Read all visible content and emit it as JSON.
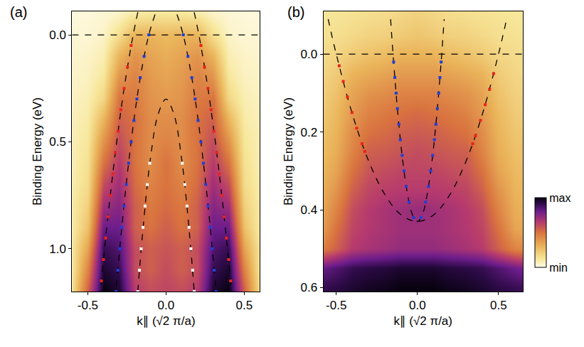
{
  "chart_data": [
    {
      "type": "heatmap",
      "annotations": [
        "(a)"
      ],
      "xlabel": "k∥ (√2 π/a)",
      "ylabel": "Binding Energy (eV)",
      "xlim": [
        -0.6,
        0.6
      ],
      "ylim": [
        1.2,
        -0.11
      ],
      "xticks": [
        -0.5,
        {
          "value": 0,
          "label": "0.0"
        },
        0.5
      ],
      "yticks": [
        {
          "value": 0,
          "label": "0.0"
        },
        0.5,
        {
          "value": 1,
          "label": "1.0"
        }
      ],
      "zlim": [
        0,
        1
      ],
      "heatmap": {
        "x": [
          -0.6,
          -0.5,
          -0.4,
          -0.3,
          -0.2,
          -0.1,
          0,
          0.1,
          0.2,
          0.3,
          0.4,
          0.5,
          0.6
        ],
        "y": [
          -0.1,
          0,
          0.1,
          0.2,
          0.3,
          0.4,
          0.5,
          0.6,
          0.7,
          0.8,
          0.9,
          1.0,
          1.1,
          1.2
        ],
        "z": [
          [
            0.02,
            0.02,
            0.03,
            0.05,
            0.1,
            0.12,
            0.12,
            0.12,
            0.1,
            0.05,
            0.03,
            0.02,
            0.02
          ],
          [
            0.03,
            0.03,
            0.05,
            0.15,
            0.3,
            0.3,
            0.28,
            0.3,
            0.3,
            0.15,
            0.05,
            0.03,
            0.03
          ],
          [
            0.04,
            0.05,
            0.08,
            0.3,
            0.4,
            0.35,
            0.32,
            0.35,
            0.4,
            0.3,
            0.08,
            0.05,
            0.04
          ],
          [
            0.05,
            0.06,
            0.12,
            0.4,
            0.45,
            0.38,
            0.35,
            0.38,
            0.45,
            0.4,
            0.12,
            0.06,
            0.05
          ],
          [
            0.06,
            0.08,
            0.18,
            0.5,
            0.48,
            0.4,
            0.38,
            0.4,
            0.48,
            0.5,
            0.18,
            0.08,
            0.06
          ],
          [
            0.07,
            0.1,
            0.3,
            0.55,
            0.5,
            0.42,
            0.42,
            0.42,
            0.5,
            0.55,
            0.3,
            0.1,
            0.07
          ],
          [
            0.08,
            0.12,
            0.4,
            0.6,
            0.5,
            0.42,
            0.45,
            0.42,
            0.5,
            0.6,
            0.4,
            0.12,
            0.08
          ],
          [
            0.08,
            0.14,
            0.5,
            0.65,
            0.5,
            0.42,
            0.5,
            0.42,
            0.5,
            0.65,
            0.5,
            0.14,
            0.08
          ],
          [
            0.09,
            0.16,
            0.6,
            0.7,
            0.52,
            0.45,
            0.5,
            0.45,
            0.52,
            0.7,
            0.6,
            0.16,
            0.09
          ],
          [
            0.1,
            0.2,
            0.7,
            0.75,
            0.55,
            0.48,
            0.52,
            0.48,
            0.55,
            0.75,
            0.7,
            0.2,
            0.1
          ],
          [
            0.1,
            0.25,
            0.8,
            0.8,
            0.55,
            0.5,
            0.55,
            0.5,
            0.55,
            0.8,
            0.8,
            0.25,
            0.1
          ],
          [
            0.12,
            0.35,
            0.9,
            0.85,
            0.6,
            0.55,
            0.58,
            0.55,
            0.6,
            0.85,
            0.9,
            0.35,
            0.12
          ],
          [
            0.12,
            0.45,
            0.95,
            0.9,
            0.6,
            0.55,
            0.6,
            0.55,
            0.6,
            0.9,
            0.95,
            0.45,
            0.12
          ],
          [
            0.15,
            0.55,
            1.0,
            0.95,
            0.65,
            0.6,
            0.62,
            0.6,
            0.65,
            0.95,
            1.0,
            0.55,
            0.15
          ]
        ]
      },
      "series": [
        {
          "type": "line",
          "line_style": "dashed",
          "color": "#000000",
          "x": [
            -0.6,
            0.6
          ],
          "values": [
            0,
            0
          ]
        },
        {
          "type": "line",
          "line_style": "dashed",
          "color": "#000000",
          "x": [
            -0.18,
            -0.21,
            -0.26,
            -0.3,
            -0.34,
            -0.38,
            -0.42
          ],
          "values": [
            -0.106,
            0,
            0.213,
            0.416,
            0.648,
            0.91,
            1.2
          ]
        },
        {
          "type": "line",
          "line_style": "dashed",
          "color": "#000000",
          "x": [
            0.18,
            0.21,
            0.26,
            0.3,
            0.34,
            0.38,
            0.42
          ],
          "values": [
            -0.106,
            0,
            0.213,
            0.416,
            0.648,
            0.91,
            1.2
          ]
        },
        {
          "type": "line",
          "line_style": "dashed",
          "color": "#000000",
          "x": [
            -0.07,
            -0.11,
            -0.16,
            -0.2,
            -0.24,
            -0.28,
            -0.32
          ],
          "values": [
            -0.096,
            0,
            0.18,
            0.37,
            0.605,
            0.88,
            1.2
          ]
        },
        {
          "type": "line",
          "line_style": "dashed",
          "color": "#000000",
          "x": [
            0.07,
            0.11,
            0.16,
            0.2,
            0.24,
            0.28,
            0.32
          ],
          "values": [
            -0.096,
            0,
            0.18,
            0.37,
            0.605,
            0.88,
            1.2
          ]
        },
        {
          "type": "line",
          "line_style": "dashed",
          "color": "#000000",
          "x": [
            -0.18,
            -0.15,
            -0.1,
            -0.05,
            0,
            0.05,
            0.1,
            0.15,
            0.18
          ],
          "values": [
            1.2,
            0.93,
            0.58,
            0.37,
            0.3,
            0.37,
            0.58,
            0.93,
            1.2
          ]
        },
        {
          "type": "scatter",
          "marker": "square",
          "color": "#e8241c",
          "x": [
            -0.223,
            -0.246,
            -0.268,
            -0.288,
            -0.306,
            -0.324,
            -0.34,
            -0.356,
            -0.371,
            -0.386,
            -0.4,
            -0.413,
            0.223,
            0.246,
            0.268,
            0.288,
            0.306,
            0.324,
            0.34,
            0.356,
            0.371,
            0.386,
            0.4,
            0.413
          ],
          "values": [
            0.05,
            0.15,
            0.25,
            0.35,
            0.45,
            0.55,
            0.65,
            0.75,
            0.85,
            0.95,
            1.05,
            1.15,
            0.05,
            0.15,
            0.25,
            0.35,
            0.45,
            0.55,
            0.65,
            0.75,
            0.85,
            0.95,
            1.05,
            1.15
          ]
        },
        {
          "type": "scatter",
          "marker": "square",
          "color": "#1f3fd6",
          "x": [
            -0.11,
            -0.14,
            -0.165,
            -0.186,
            -0.205,
            -0.223,
            -0.239,
            -0.254,
            -0.269,
            -0.282,
            -0.295,
            -0.308,
            -0.32,
            0.11,
            0.14,
            0.165,
            0.186,
            0.205,
            0.223,
            0.239,
            0.254,
            0.269,
            0.282,
            0.295,
            0.308,
            0.32
          ],
          "values": [
            0,
            0.1,
            0.2,
            0.3,
            0.4,
            0.5,
            0.6,
            0.7,
            0.8,
            0.9,
            1.0,
            1.1,
            1.2,
            0,
            0.1,
            0.2,
            0.3,
            0.4,
            0.5,
            0.6,
            0.7,
            0.8,
            0.9,
            1.0,
            1.1,
            1.2
          ]
        },
        {
          "type": "scatter",
          "marker": "square",
          "color": "#ffffff",
          "x": [
            -0.104,
            -0.12,
            -0.134,
            -0.147,
            -0.159,
            -0.17,
            -0.18,
            0.104,
            0.12,
            0.134,
            0.147,
            0.159,
            0.17,
            0.18
          ],
          "values": [
            0.6,
            0.7,
            0.8,
            0.9,
            1.0,
            1.1,
            1.2,
            0.6,
            0.7,
            0.8,
            0.9,
            1.0,
            1.1,
            1.2
          ]
        }
      ]
    },
    {
      "type": "heatmap",
      "annotations": [
        "(b)"
      ],
      "xlabel": "k∥ (√2 π/a)",
      "ylabel": "Binding Energy (eV)",
      "xlim": [
        -0.58,
        0.65
      ],
      "ylim": [
        0.61,
        -0.11
      ],
      "xticks": [
        -0.5,
        {
          "value": 0,
          "label": "0.0"
        },
        0.5
      ],
      "yticks": [
        {
          "value": 0,
          "label": "0.0"
        },
        0.2,
        0.4,
        0.6
      ],
      "zlim": [
        0,
        1
      ],
      "zticks": [
        {
          "value": 0,
          "label": "min"
        },
        {
          "value": 1,
          "label": "max"
        }
      ],
      "heatmap": {
        "x": [
          -0.6,
          -0.5,
          -0.4,
          -0.3,
          -0.2,
          -0.1,
          0,
          0.1,
          0.2,
          0.3,
          0.4,
          0.5,
          0.6,
          0.7
        ],
        "y": [
          -0.1,
          -0.05,
          0,
          0.05,
          0.1,
          0.15,
          0.2,
          0.25,
          0.3,
          0.35,
          0.4,
          0.45,
          0.5,
          0.55,
          0.6
        ],
        "z": [
          [
            0.12,
            0.13,
            0.14,
            0.15,
            0.16,
            0.18,
            0.2,
            0.18,
            0.16,
            0.15,
            0.14,
            0.13,
            0.12,
            0.12
          ],
          [
            0.14,
            0.15,
            0.17,
            0.19,
            0.2,
            0.22,
            0.24,
            0.22,
            0.2,
            0.19,
            0.17,
            0.15,
            0.14,
            0.13
          ],
          [
            0.16,
            0.18,
            0.22,
            0.25,
            0.27,
            0.3,
            0.3,
            0.3,
            0.27,
            0.25,
            0.22,
            0.18,
            0.16,
            0.15
          ],
          [
            0.18,
            0.22,
            0.3,
            0.33,
            0.35,
            0.38,
            0.38,
            0.38,
            0.35,
            0.33,
            0.3,
            0.22,
            0.18,
            0.16
          ],
          [
            0.2,
            0.25,
            0.35,
            0.4,
            0.42,
            0.45,
            0.45,
            0.45,
            0.42,
            0.4,
            0.35,
            0.25,
            0.2,
            0.18
          ],
          [
            0.22,
            0.28,
            0.38,
            0.45,
            0.48,
            0.5,
            0.52,
            0.5,
            0.48,
            0.45,
            0.38,
            0.28,
            0.22,
            0.2
          ],
          [
            0.24,
            0.3,
            0.42,
            0.5,
            0.52,
            0.55,
            0.56,
            0.55,
            0.52,
            0.5,
            0.42,
            0.3,
            0.24,
            0.22
          ],
          [
            0.26,
            0.32,
            0.45,
            0.55,
            0.56,
            0.58,
            0.6,
            0.58,
            0.56,
            0.55,
            0.45,
            0.32,
            0.26,
            0.24
          ],
          [
            0.28,
            0.35,
            0.5,
            0.58,
            0.6,
            0.62,
            0.62,
            0.62,
            0.6,
            0.58,
            0.5,
            0.35,
            0.28,
            0.26
          ],
          [
            0.3,
            0.4,
            0.55,
            0.62,
            0.64,
            0.65,
            0.65,
            0.65,
            0.64,
            0.62,
            0.55,
            0.4,
            0.3,
            0.28
          ],
          [
            0.32,
            0.45,
            0.6,
            0.65,
            0.68,
            0.7,
            0.72,
            0.7,
            0.68,
            0.65,
            0.6,
            0.45,
            0.32,
            0.3
          ],
          [
            0.35,
            0.5,
            0.62,
            0.66,
            0.68,
            0.7,
            0.7,
            0.7,
            0.68,
            0.66,
            0.62,
            0.5,
            0.35,
            0.32
          ],
          [
            0.45,
            0.55,
            0.65,
            0.68,
            0.7,
            0.72,
            0.72,
            0.72,
            0.7,
            0.68,
            0.65,
            0.55,
            0.45,
            0.4
          ],
          [
            0.8,
            0.85,
            0.9,
            0.92,
            0.93,
            0.95,
            0.95,
            0.95,
            0.93,
            0.92,
            0.9,
            0.85,
            0.8,
            0.75
          ],
          [
            0.9,
            0.92,
            0.95,
            0.97,
            0.98,
            1.0,
            1.0,
            1.0,
            0.98,
            0.97,
            0.95,
            0.92,
            0.9,
            0.88
          ]
        ]
      },
      "series": [
        {
          "type": "line",
          "line_style": "dashed",
          "color": "#000000",
          "x": [
            -0.58,
            0.65
          ],
          "values": [
            0,
            0
          ]
        },
        {
          "type": "line",
          "line_style": "dashed",
          "color": "#000000",
          "x": [
            -0.55,
            -0.5,
            -0.4,
            -0.3,
            -0.2,
            -0.1,
            0,
            0.1,
            0.2,
            0.3,
            0.4,
            0.5,
            0.55
          ],
          "values": [
            -0.09,
            0,
            0.155,
            0.275,
            0.361,
            0.413,
            0.43,
            0.413,
            0.361,
            0.275,
            0.155,
            0,
            -0.09
          ]
        },
        {
          "type": "line",
          "line_style": "dashed",
          "color": "#000000",
          "x": [
            -0.165,
            -0.15,
            -0.12,
            -0.09,
            -0.06,
            -0.03,
            0,
            0.03,
            0.06,
            0.09,
            0.12,
            0.15,
            0.165
          ],
          "values": [
            -0.09,
            0,
            0.155,
            0.275,
            0.361,
            0.413,
            0.43,
            0.413,
            0.361,
            0.275,
            0.155,
            0,
            -0.09
          ]
        },
        {
          "type": "scatter",
          "marker": "square",
          "color": "#e8241c",
          "x": [
            -0.482,
            -0.457,
            -0.431,
            -0.403,
            -0.374,
            -0.341,
            -0.324,
            0.47,
            0.445,
            0.418,
            0.389,
            0.358,
            0.341
          ],
          "values": [
            0.03,
            0.07,
            0.11,
            0.15,
            0.19,
            0.23,
            0.25,
            0.05,
            0.09,
            0.13,
            0.17,
            0.21,
            0.23
          ]
        },
        {
          "type": "scatter",
          "marker": "square",
          "color": "#1f3fd6",
          "x": [
            -0.1465,
            -0.139,
            -0.131,
            -0.123,
            -0.114,
            -0.105,
            -0.094,
            -0.082,
            -0.069,
            -0.051,
            -0.023,
            0.1465,
            0.139,
            0.131,
            0.123,
            0.114,
            0.105,
            0.094,
            0.082,
            0.069,
            0.051,
            0.023
          ],
          "values": [
            0.02,
            0.06,
            0.1,
            0.14,
            0.18,
            0.22,
            0.26,
            0.3,
            0.34,
            0.38,
            0.42,
            0.02,
            0.06,
            0.1,
            0.14,
            0.18,
            0.22,
            0.26,
            0.3,
            0.34,
            0.38,
            0.42
          ]
        }
      ]
    }
  ]
}
